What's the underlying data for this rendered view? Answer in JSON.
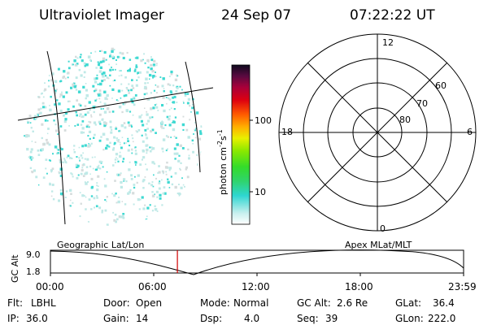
{
  "header": {
    "instrument": "Ultraviolet Imager",
    "date": "24 Sep 07",
    "time": "07:22:22 UT"
  },
  "colorbar": {
    "unit_prefix": "photon cm",
    "unit_exp1": "-2",
    "unit_mid": "s",
    "unit_exp2": "-1",
    "ticks": [
      {
        "label": "100",
        "value": 100
      },
      {
        "label": "10",
        "value": 10
      }
    ]
  },
  "polar_plot": {
    "mlt_labels": [
      "12",
      "6",
      "0",
      "18"
    ],
    "lat_labels": [
      "60",
      "70",
      "80"
    ]
  },
  "timeline": {
    "left_label": "Geographic Lat/Lon",
    "right_label": "Apex MLat/MLT",
    "y_axis_label": "GC Alt",
    "y_ticks": [
      "9.0",
      "1.8"
    ],
    "x_ticks": [
      "00:00",
      "06:00",
      "12:00",
      "18:00",
      "23:59"
    ],
    "marker_time": "07:22:22"
  },
  "info": {
    "filter_label": "Flt:",
    "filter_value": "LBHL",
    "ip_label": "IP:",
    "ip_value": "36.0",
    "door_label": "Door:",
    "door_value": "Open",
    "gain_label": "Gain:",
    "gain_value": "14",
    "mode_label": "Mode:",
    "mode_value": "Normal",
    "dsp_label": "Dsp:",
    "dsp_value": "4.0",
    "gcalt_label": "GC Alt:",
    "gcalt_value": "2.6 Re",
    "seq_label": "Seq:",
    "seq_value": "39",
    "glat_label": "GLat:",
    "glat_value": "36.4",
    "glon_label": "GLon:",
    "glon_value": "222.0"
  },
  "colors": {
    "speckle_cyan": "#3fd9d2",
    "speckle_light": "#bfe9e7",
    "speckle_grey": "#d6dcdc",
    "marker": "#d00000"
  }
}
